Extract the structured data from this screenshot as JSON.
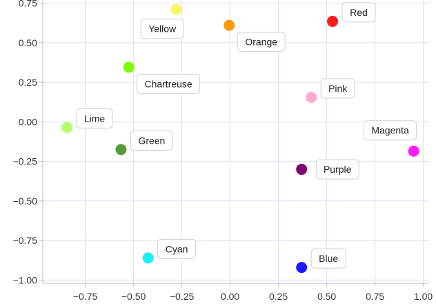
{
  "chart_data": {
    "type": "scatter",
    "title": "",
    "xlabel": "",
    "ylabel": "",
    "xlim": [
      -0.97,
      1.03
    ],
    "ylim": [
      -1.02,
      0.77
    ],
    "grid": true,
    "legend": "none",
    "x_ticks": [
      -0.75,
      -0.5,
      -0.25,
      0.0,
      0.25,
      0.5,
      0.75,
      1.0
    ],
    "x_tick_labels": [
      "−0.75",
      "−0.50",
      "−0.25",
      "0.00",
      "0.25",
      "0.50",
      "0.75",
      "1.00"
    ],
    "y_ticks": [
      0.75,
      0.5,
      0.25,
      0.0,
      -0.25,
      -0.5,
      -0.75,
      -1.0
    ],
    "y_tick_labels": [
      "0.75",
      "0.50",
      "0.25",
      "0.00",
      "−0.25",
      "−0.50",
      "−0.75",
      "−1.00"
    ],
    "points": [
      {
        "label": "Yellow",
        "x": -0.28,
        "y": 0.71,
        "color": "#f7f56a",
        "label_side": "below-left"
      },
      {
        "label": "Orange",
        "x": -0.005,
        "y": 0.61,
        "color": "#ff9900",
        "label_side": "below-right"
      },
      {
        "label": "Red",
        "x": 0.53,
        "y": 0.635,
        "color": "#ff1a1a",
        "label_side": "above-right"
      },
      {
        "label": "Chartreuse",
        "x": -0.525,
        "y": 0.345,
        "color": "#7cff00",
        "label_side": "below-right"
      },
      {
        "label": "Pink",
        "x": 0.42,
        "y": 0.155,
        "color": "#ffaad0",
        "label_side": "above-right"
      },
      {
        "label": "Lime",
        "x": -0.845,
        "y": -0.035,
        "color": "#b2ff70",
        "label_side": "above-right"
      },
      {
        "label": "Green",
        "x": -0.565,
        "y": -0.175,
        "color": "#5b9a3a",
        "label_side": "above-right"
      },
      {
        "label": "Magenta",
        "x": 0.95,
        "y": -0.185,
        "color": "#ff1aff",
        "label_side": "above-left"
      },
      {
        "label": "Purple",
        "x": 0.37,
        "y": -0.3,
        "color": "#800070",
        "label_side": "right"
      },
      {
        "label": "Cyan",
        "x": -0.425,
        "y": -0.86,
        "color": "#1af0f0",
        "label_side": "above-right"
      },
      {
        "label": "Blue",
        "x": 0.37,
        "y": -0.92,
        "color": "#1a1aff",
        "label_side": "above-right"
      }
    ]
  }
}
